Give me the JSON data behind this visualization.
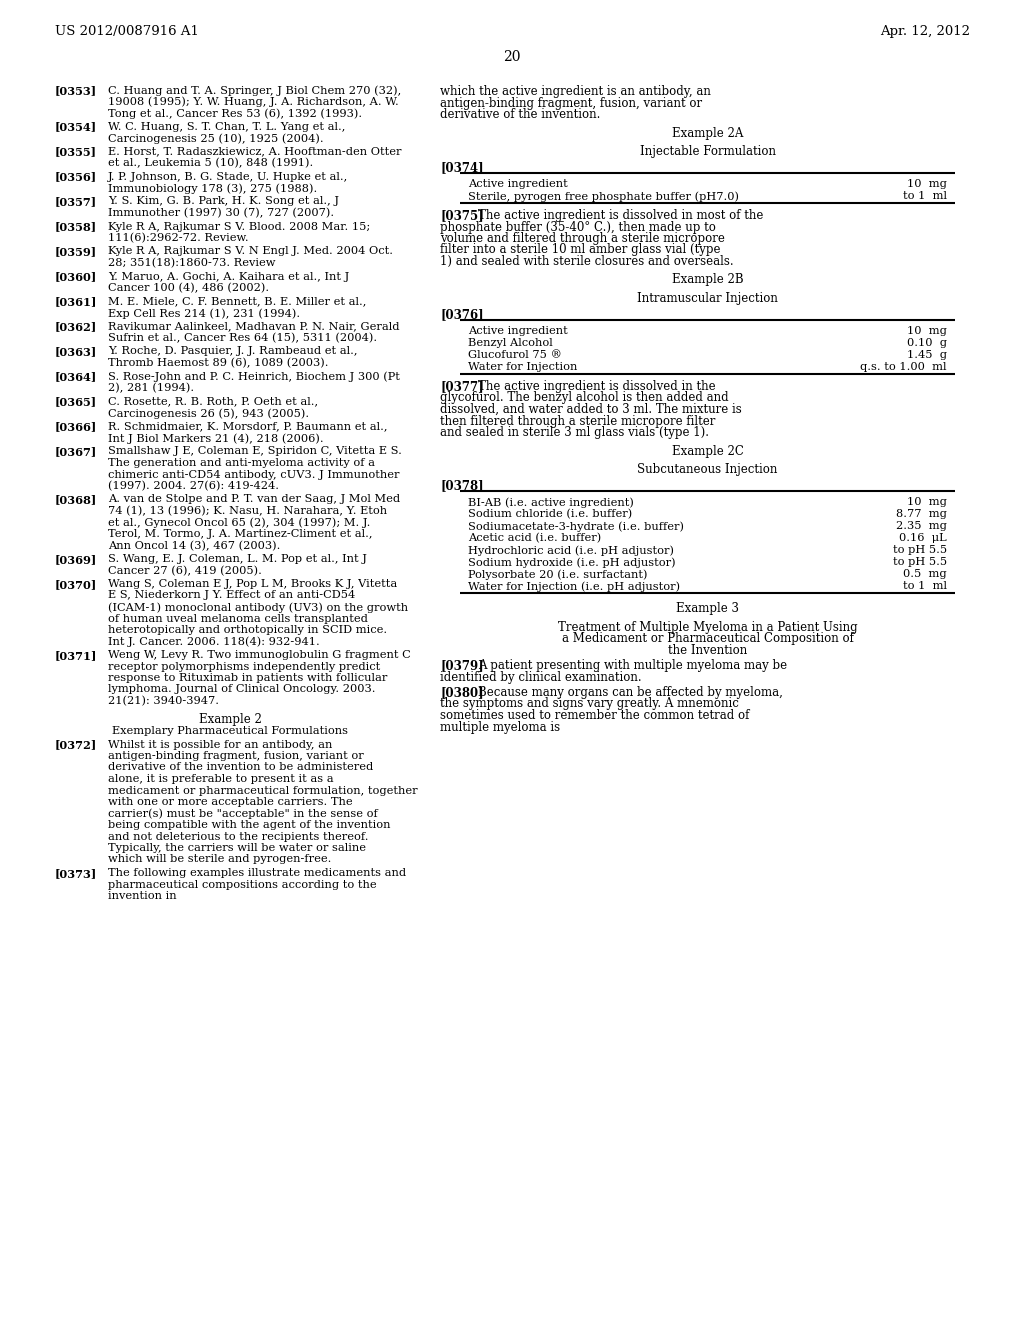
{
  "background_color": "#ffffff",
  "header_left": "US 2012/0087916 A1",
  "header_right": "Apr. 12, 2012",
  "page_number": "20",
  "left_column": {
    "references": [
      {
        "num": "[0353]",
        "text": "C. Huang and T. A. Springer, \\textit{J Biol Chem} 270 (32), 19008 (1995); Y. W. Huang, J. A. Richardson, A. W. Tong et al., \\textit{Cancer Res} 53 (6), 1392 (1993)."
      },
      {
        "num": "[0354]",
        "text": "W. C. Huang, S. T. Chan, T. L. Yang et al., \\textit{Carcinogenesis} 25 (10), 1925 (2004)."
      },
      {
        "num": "[0355]",
        "text": "E. Horst, T. Radaszkiewicz, A. Hooftman-den Otter et al., \\textit{Leukemia} 5 (10), 848 (1991)."
      },
      {
        "num": "[0356]",
        "text": "J. P. Johnson, B. G. Stade, U. Hupke et al., \\textit{Immunobiology} 178 (3), 275 (1988)."
      },
      {
        "num": "[0357]",
        "text": "Y. S. Kim, G. B. Park, H. K. Song et al., \\textit{J Immunother} (1997) 30 (7), 727 (2007)."
      },
      {
        "num": "[0358]",
        "text": "Kyle R A, Rajkumar S V. Blood. 2008 Mar. 15; 111(6):2962-72. Review."
      },
      {
        "num": "[0359]",
        "text": "Kyle R A, Rajkumar S V. N Engl J. Med. 2004 Oct. 28; 351(18):1860-73. Review"
      },
      {
        "num": "[0360]",
        "text": "Y. Maruo, A. Gochi, A. Kaihara et al., \\textit{Int J Cancer} 100 (4), 486 (2002)."
      },
      {
        "num": "[0361]",
        "text": "M. E. Miele, C. F. Bennett, B. E. Miller et al., \\textit{Exp Cell Res} 214 (1), 231 (1994)."
      },
      {
        "num": "[0362]",
        "text": "Ravikumar Aalinkeel, Madhavan P. N. Nair, Gerald Sufrin et al., \\textit{Cancer Res} 64 (15), 5311 (2004)."
      },
      {
        "num": "[0363]",
        "text": "Y. Roche, D. Pasquier, J. J. Rambeaud et al., \\textit{Thromb Haemost} 89 (6), 1089 (2003)."
      },
      {
        "num": "[0364]",
        "text": "S. Rose-John and P. C. Heinrich, \\textit{Biochem J} 300 (Pt 2), 281 (1994)."
      },
      {
        "num": "[0365]",
        "text": "C. Rosette, R. B. Roth, P. Oeth et al., \\textit{Carcinogenesis} 26 (5), 943 (2005)."
      },
      {
        "num": "[0366]",
        "text": "R. Schmidmaier, K. Morsdorf, P. Baumann et al., \\textit{Int J Biol Markers} 21 (4), 218 (2006)."
      },
      {
        "num": "[0367]",
        "text": "Smallshaw J E, Coleman E, Spiridon C, Vitetta E S. The generation and anti-myeloma activity of a chimeric anti-CD54 antibody, cUV3. J Immunother (1997). 2004. 27(6): 419-424."
      },
      {
        "num": "[0368]",
        "text": "A. van de Stolpe and P. T. van der Saag, \\textit{J Mol Med} 74 (1), 13 (1996); K. Nasu, H. Narahara, Y. Etoh et al., \\textit{Gynecol Oncol} 65 (2), 304 (1997); M. J. Terol, M. Tormo, J. A. Martinez-Climent et al., \\textit{Ann Oncol} 14 (3), 467 (2003)."
      },
      {
        "num": "[0369]",
        "text": "S. Wang, E. J. Coleman, L. M. Pop et al., \\textit{Int J Cancer} 27 (6), 419 (2005)."
      },
      {
        "num": "[0370]",
        "text": "Wang S, Coleman E J, Pop L M, Brooks K J, Vitetta E S, Niederkorn J Y. Effect of an anti-CD54 (ICAM-1) monoclonal antibody (UV3) on the growth of human uveal melanoma cells transplanted heterotopically and orthotopically in SCID mice. Int J. Cancer. 2006. 118(4): 932-941."
      },
      {
        "num": "[0371]",
        "text": "Weng W, Levy R. Two immunoglobulin G fragment C receptor polymorphisms independently predict response to Rituximab in patients with follicular lymphoma. Journal of Clinical Oncology. 2003. 21(21): 3940-3947."
      },
      {
        "num": "Example 2",
        "text": "",
        "bold": true,
        "center": true
      },
      {
        "num": "Exemplary Pharmaceutical Formulations",
        "text": "",
        "center": true
      },
      {
        "num": "[0372]",
        "text": "Whilst it is possible for an antibody, an antigen-binding fragment, fusion, variant or derivative of the invention to be administered alone, it is preferable to present it as a medicament or pharmaceutical formulation, together with one or more acceptable carriers. The carrier(s) must be \"acceptable\" in the sense of being compatible with the agent of the invention and not deleterious to the recipients thereof. Typically, the carriers will be water or saline which will be sterile and pyrogen-free."
      },
      {
        "num": "[0373]",
        "text": "The following examples illustrate medicaments and pharmaceutical compositions according to the invention in"
      }
    ]
  },
  "right_column": {
    "content": [
      {
        "type": "text",
        "text": "which the active ingredient is an antibody, an antigen-binding fragment, fusion, variant or derivative of the invention."
      },
      {
        "type": "heading_center",
        "text": "Example 2A"
      },
      {
        "type": "heading_center",
        "text": "Injectable Formulation"
      },
      {
        "type": "para_num",
        "num": "[0374]",
        "text": ""
      },
      {
        "type": "table",
        "id": "table1",
        "rows": [
          {
            "label": "Active ingredient",
            "value": "10  mg"
          },
          {
            "label": "Sterile, pyrogen free phosphate buffer (pH7.0)",
            "value": "to 1  ml"
          }
        ]
      },
      {
        "type": "para_num_text",
        "num": "[0375]",
        "text": "The active ingredient is dissolved in most of the phosphate buffer (35-40° C.), then made up to volume and filtered through a sterile micropore filter into a sterile 10 ml amber glass vial (type 1) and sealed with sterile closures and overseals."
      },
      {
        "type": "heading_center",
        "text": "Example 2B"
      },
      {
        "type": "heading_center",
        "text": "Intramuscular Injection"
      },
      {
        "type": "para_num",
        "num": "[0376]",
        "text": ""
      },
      {
        "type": "table",
        "id": "table2",
        "rows": [
          {
            "label": "Active ingredient",
            "value": "10  mg"
          },
          {
            "label": "Benzyl Alcohol",
            "value": "0.10  g"
          },
          {
            "label": "Glucofurol 75 ®",
            "value": "1.45  g"
          },
          {
            "label": "Water for Injection",
            "value": "q.s. to 1.00  ml"
          }
        ]
      },
      {
        "type": "para_num_text",
        "num": "[0377]",
        "text": "The active ingredient is dissolved in the glycofurol. The benzyl alcohol is then added and dissolved, and water added to 3 ml. The mixture is then filtered through a sterile micropore filter and sealed in sterile 3 ml glass vials (type 1)."
      },
      {
        "type": "heading_center",
        "text": "Example 2C"
      },
      {
        "type": "heading_center",
        "text": "Subcutaneous Injection"
      },
      {
        "type": "para_num",
        "num": "[0378]",
        "text": ""
      },
      {
        "type": "table",
        "id": "table3",
        "rows": [
          {
            "label": "BI-AB (i.e. active ingredient)",
            "value": "10  mg"
          },
          {
            "label": "Sodium chloride (i.e. buffer)",
            "value": "8.77  mg"
          },
          {
            "label": "Sodiumacetate-3-hydrate (i.e. buffer)",
            "value": "2.35  mg"
          },
          {
            "label": "Acetic acid (i.e. buffer)",
            "value": "0.16  μL"
          },
          {
            "label": "Hydrochloric acid (i.e. pH adjustor)",
            "value": "to pH 5.5"
          },
          {
            "label": "Sodium hydroxide (i.e. pH adjustor)",
            "value": "to pH 5.5"
          },
          {
            "label": "Polysorbate 20 (i.e. surfactant)",
            "value": "0.5  mg"
          },
          {
            "label": "Water for Injection (i.e. pH adjustor)",
            "value": "to 1  ml"
          }
        ]
      },
      {
        "type": "heading_center",
        "text": "Example 3"
      },
      {
        "type": "heading_center_multi",
        "text": "Treatment of Multiple Myeloma in a Patient Using a Medicament or Pharmaceutical Composition of the Invention"
      },
      {
        "type": "para_num_text",
        "num": "[0379]",
        "text": "A patient presenting with multiple myeloma may be identified by clinical examination."
      },
      {
        "type": "para_num_text",
        "num": "[0380]",
        "text": "Because many organs can be affected by myeloma, the symptoms and signs vary greatly. A mnemonic sometimes used to remember the common tetrad of multiple myeloma is"
      }
    ]
  }
}
